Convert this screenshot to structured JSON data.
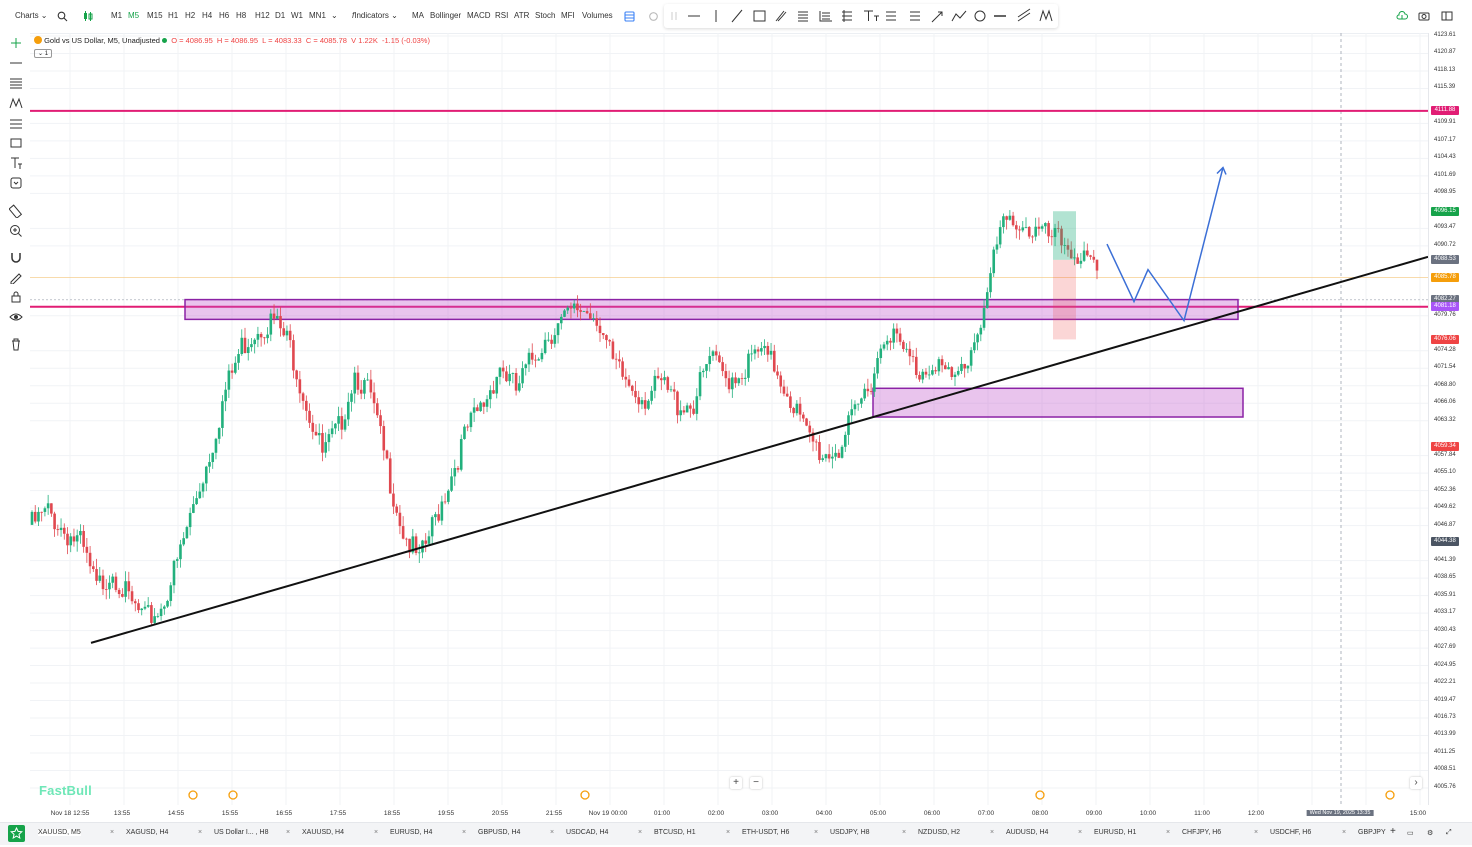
{
  "topbar": {
    "charts_menu": "Charts",
    "timeframes": [
      {
        "label": "M1",
        "active": false
      },
      {
        "label": "M5",
        "active": true
      },
      {
        "label": "M15",
        "active": false
      },
      {
        "label": "H1",
        "active": false
      },
      {
        "label": "H2",
        "active": false
      },
      {
        "label": "H4",
        "active": false
      },
      {
        "label": "H6",
        "active": false
      },
      {
        "label": "H8",
        "active": false
      },
      {
        "label": "H12",
        "active": false
      },
      {
        "label": "D1",
        "active": false
      },
      {
        "label": "W1",
        "active": false
      },
      {
        "label": "MN1",
        "active": false
      }
    ],
    "indicators_menu": "Indicators",
    "indicator_shortcuts": [
      "MA",
      "Bollinger",
      "MACD",
      "RSI",
      "ATR",
      "Stoch",
      "MFI",
      "Volumes"
    ]
  },
  "legend": {
    "symbol": "Gold vs US Dollar, M5, Unadjusted",
    "open": "O = 4086.95",
    "high": "H = 4086.95",
    "low": "L = 4083.33",
    "close": "C = 4085.78",
    "volume": "V 1.22K",
    "change": "-1.15 (-0.03%)",
    "collapse_count": "1"
  },
  "watermark": "FastBull",
  "zoom": {
    "plus": "+",
    "minus": "−"
  },
  "y_axis": {
    "labels": [
      "4123.61",
      "4120.87",
      "4118.13",
      "4115.39",
      "4109.91",
      "4107.17",
      "4104.43",
      "4101.69",
      "4098.95",
      "4093.47",
      "4090.72",
      "4079.76",
      "4074.28",
      "4071.54",
      "4068.80",
      "4066.06",
      "4063.32",
      "4057.84",
      "4055.10",
      "4052.36",
      "4049.62",
      "4046.87",
      "4041.39",
      "4038.65",
      "4035.91",
      "4033.17",
      "4030.43",
      "4027.69",
      "4024.95",
      "4022.21",
      "4019.47",
      "4016.73",
      "4013.99",
      "4011.25",
      "4008.51",
      "4005.76"
    ],
    "badges": [
      {
        "text": "4111.88",
        "color": "#e11d74"
      },
      {
        "text": "4096.15",
        "color": "#16a34a"
      },
      {
        "text": "4088.53",
        "color": "#6b7280"
      },
      {
        "text": "4085.78",
        "color": "#f59e0b"
      },
      {
        "text": "4082.27",
        "color": "#6b7280"
      },
      {
        "text": "4081.18",
        "color": "#a855f7"
      },
      {
        "text": "4076.06",
        "color": "#ef4444"
      },
      {
        "text": "4059.34",
        "color": "#ef4444"
      },
      {
        "text": "4044.38",
        "color": "#4b5563"
      }
    ]
  },
  "x_axis": {
    "labels": [
      "Nov 18 12:55",
      "13:55",
      "14:55",
      "15:55",
      "16:55",
      "17:55",
      "18:55",
      "19:55",
      "20:55",
      "21:55",
      "Nov 19 00:00",
      "01:00",
      "02:00",
      "03:00",
      "04:00",
      "05:00",
      "06:00",
      "07:00",
      "08:00",
      "09:00",
      "10:00",
      "11:00",
      "12:00",
      "Wed Nov 19, 2025 13:35",
      "15:00"
    ]
  },
  "bottom_tabs": [
    "XAUUSD, M5",
    "XAGUSD, H4",
    "US Dollar I... , H8",
    "XAUUSD, H4",
    "EURUSD, H4",
    "GBPUSD, H4",
    "USDCAD, H4",
    "BTCUSD, H1",
    "ETH-USDT, H6",
    "USDJPY, H8",
    "NZDUSD, H2",
    "AUDUSD, H4",
    "EURUSD, H1",
    "CHFJPY, H6",
    "USDCHF, H6",
    "GBPJPY"
  ],
  "chart_data": {
    "type": "candlestick",
    "symbol": "XAUUSD",
    "timeframe": "M5",
    "ylim": [
      4005.76,
      4123.61
    ],
    "x_range": [
      "Nov 18 12:55",
      "Nov 19 15:00"
    ],
    "last_price": 4085.78,
    "resistance_line": 4111.88,
    "support_line": 4081.18,
    "zones": [
      {
        "from": 4079.2,
        "to": 4082.3,
        "start": "Nov 18 14:55",
        "end": "Nov 19 11:45"
      },
      {
        "from": 4063.9,
        "to": 4068.4,
        "start": "Nov 19 04:55",
        "end": "Nov 19 12:00"
      }
    ],
    "trendline": {
      "start": [
        "Nov 18 13:30",
        4028.5
      ],
      "end": [
        "Nov 19 15:00",
        4089.0
      ]
    },
    "close_path": [
      4047,
      4049,
      4046,
      4044,
      4037,
      4040,
      4035,
      4032,
      4034,
      4041,
      4050,
      4058,
      4068,
      4075,
      4078,
      4079,
      4075,
      4066,
      4058,
      4062,
      4071,
      4067,
      4056,
      4046,
      4041,
      4048,
      4055,
      4062,
      4066,
      4072,
      4068,
      4073,
      4077,
      4079,
      4081,
      4080,
      4072,
      4069,
      4067,
      4069,
      4066,
      4066,
      4073,
      4070,
      4071,
      4074,
      4072,
      4067,
      4061,
      4058,
      4059,
      4064,
      4070,
      4078,
      4074,
      4071,
      4073,
      4069,
      4073,
      4081,
      4093,
      4095,
      4093,
      4092,
      4091,
      4089,
      4086
    ],
    "projection_path": [
      4091,
      4082,
      4087,
      4079,
      4103
    ]
  }
}
